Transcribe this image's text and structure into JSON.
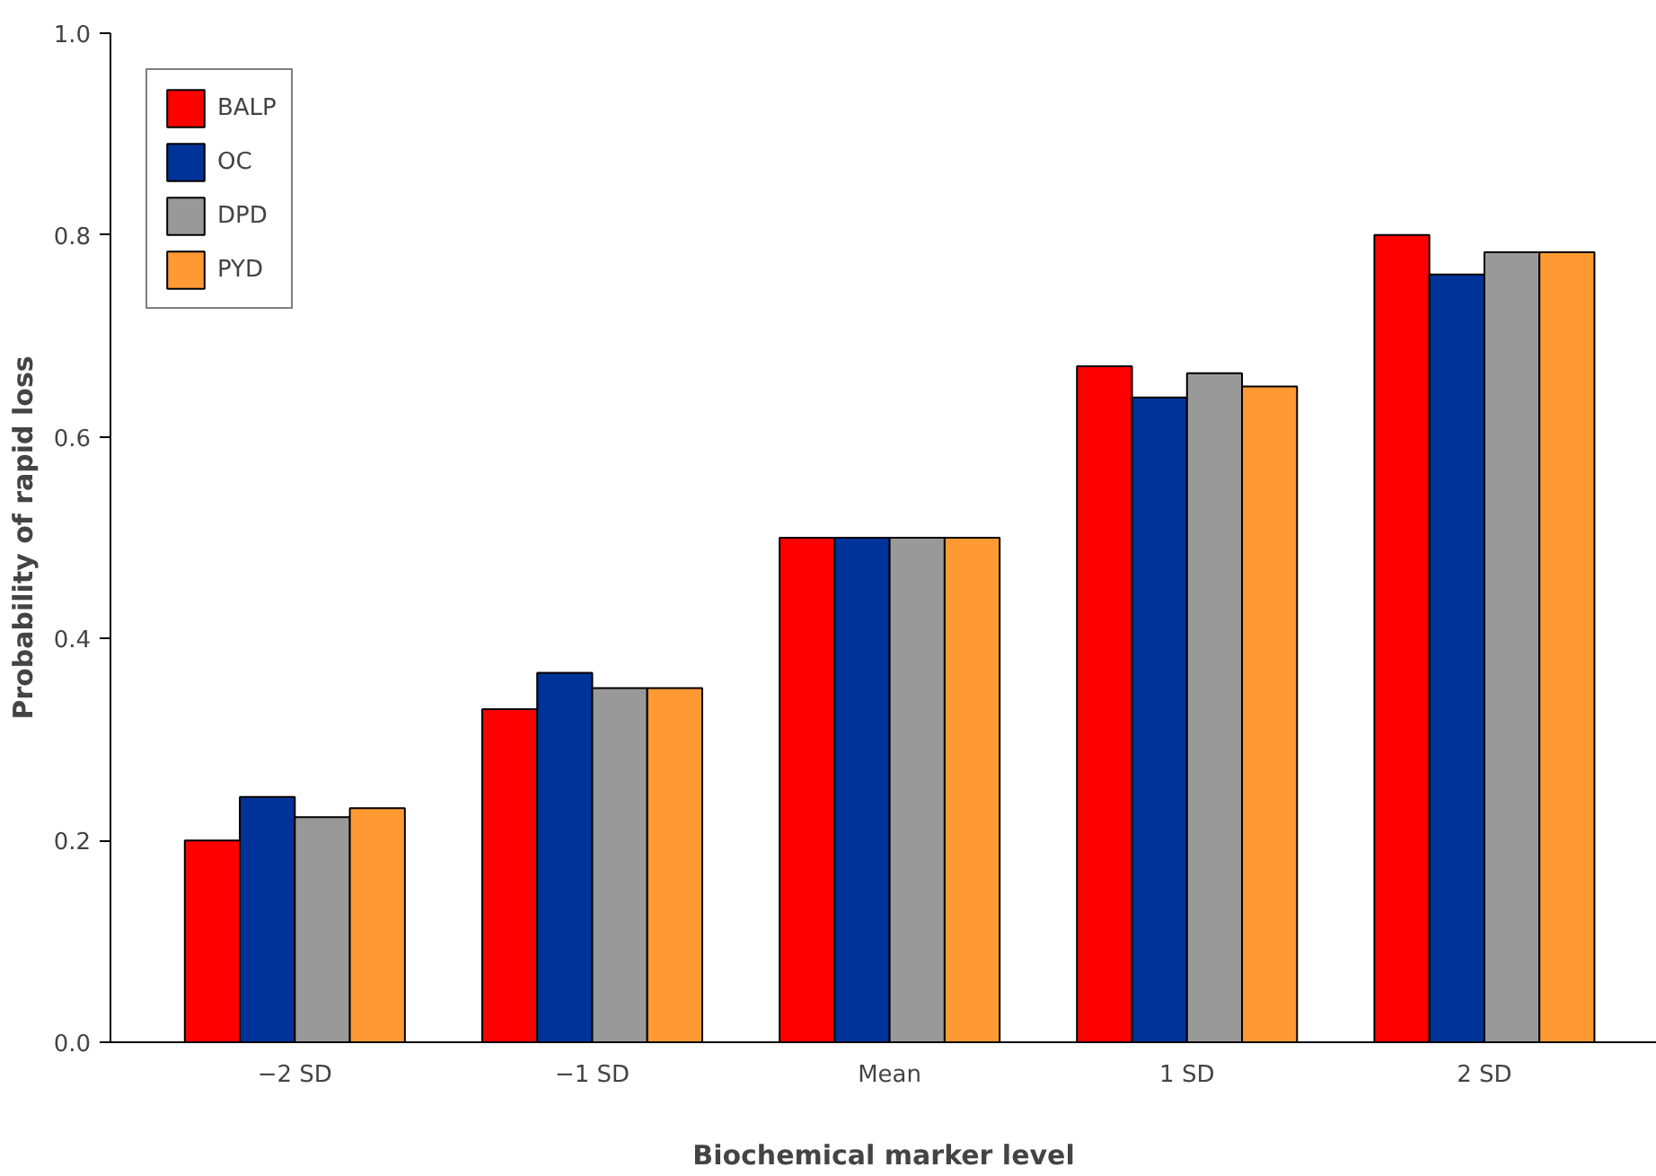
{
  "chart_data": {
    "type": "bar",
    "xlabel": "Biochemical marker level",
    "ylabel": "Probability of rapid loss",
    "categories": [
      "−2 SD",
      "−1 SD",
      "Mean",
      "1 SD",
      "2 SD"
    ],
    "series": [
      {
        "name": "BALP",
        "color": "#ff0000",
        "values": [
          0.2,
          0.33,
          0.5,
          0.67,
          0.8
        ]
      },
      {
        "name": "OC",
        "color": "#003399",
        "values": [
          0.243,
          0.366,
          0.5,
          0.639,
          0.761
        ]
      },
      {
        "name": "DPD",
        "color": "#999999",
        "values": [
          0.223,
          0.351,
          0.5,
          0.663,
          0.783
        ]
      },
      {
        "name": "PYD",
        "color": "#ff9933",
        "values": [
          0.232,
          0.351,
          0.5,
          0.65,
          0.783
        ]
      }
    ],
    "ylim": [
      0,
      1
    ],
    "yticks": [
      {
        "value": 0,
        "label": "0.0"
      },
      0.2,
      0.4,
      0.6,
      0.8,
      {
        "value": 1,
        "label": "1.0"
      }
    ],
    "grid": false,
    "legend": "top left"
  }
}
